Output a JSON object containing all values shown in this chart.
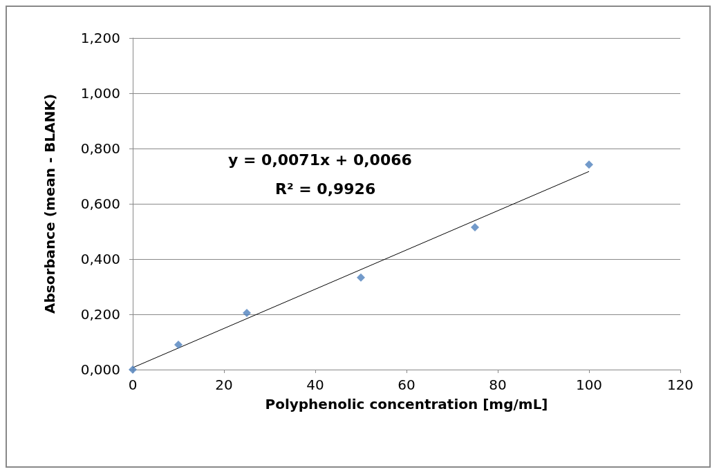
{
  "chart_data": {
    "type": "scatter",
    "xlabel": "Polyphenolic concentration [mg/mL]",
    "ylabel": "Absorbance (mean - BLANK)",
    "series": [
      {
        "color": "#4f81bd",
        "marker": "diamond",
        "x": [
          0,
          10,
          25,
          50,
          75,
          100
        ],
        "values": [
          0,
          0.09,
          0.205,
          0.333,
          0.515,
          0.742
        ]
      },
      {
        "type": "line",
        "color": "#000000",
        "marker": "none",
        "x": [
          0,
          100
        ],
        "values": [
          0.007,
          0.717
        ]
      }
    ],
    "annotations": [
      "y = 0,0071x + 0,0066",
      "R² = 0,9926"
    ],
    "xlim": [
      0,
      120
    ],
    "xticks": [
      0,
      20,
      40,
      60,
      80,
      100,
      120
    ],
    "ylim": [
      0,
      1.2
    ],
    "yticks": [
      {
        "value": 0,
        "label": "0,000"
      },
      {
        "value": 0.2,
        "label": "0,200"
      },
      {
        "value": 0.4,
        "label": "0,400"
      },
      {
        "value": 0.6,
        "label": "0,600"
      },
      {
        "value": 0.8,
        "label": "0,800"
      },
      {
        "value": 1.0,
        "label": "1,000"
      },
      {
        "value": 1.2,
        "label": "1,200"
      }
    ],
    "grid": "y"
  }
}
